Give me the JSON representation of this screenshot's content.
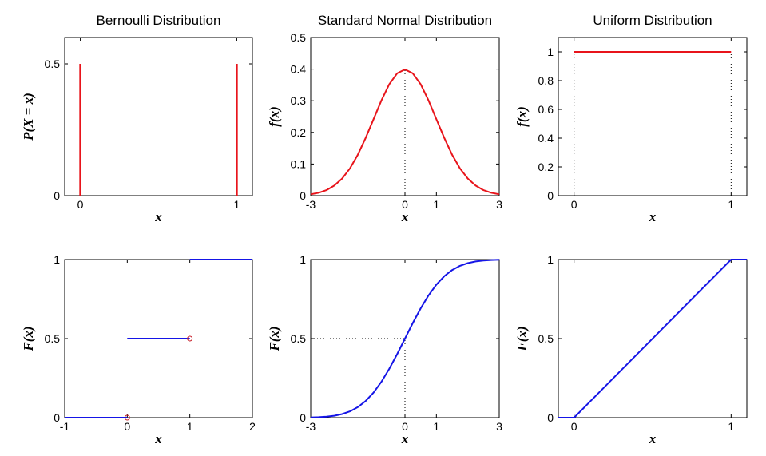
{
  "chart_data": [
    {
      "id": "bernoulli-pmf",
      "type": "stem",
      "title": "Bernoulli Distribution",
      "xlabel": "x",
      "ylabel": "P(X = x)",
      "xlim": [
        -0.1,
        1.1
      ],
      "ylim": [
        0,
        0.6
      ],
      "xticks": [
        0,
        1
      ],
      "yticks": [
        0,
        0.5
      ],
      "xtick_labels": [
        "0",
        "1"
      ],
      "ytick_labels": [
        "0",
        "0.5"
      ],
      "series": [
        {
          "kind": "stem",
          "color": "#e8141b",
          "points": [
            [
              0,
              0.5
            ],
            [
              1,
              0.5
            ]
          ]
        }
      ],
      "guides": []
    },
    {
      "id": "normal-pdf",
      "type": "line",
      "title": "Standard Normal Distribution",
      "xlabel": "x",
      "ylabel": "f(x)",
      "xlim": [
        -3,
        3
      ],
      "ylim": [
        0,
        0.5
      ],
      "xticks": [
        -3,
        0,
        1,
        3
      ],
      "yticks": [
        0,
        0.1,
        0.2,
        0.3,
        0.4,
        0.5
      ],
      "xtick_labels": [
        "-3",
        "0",
        "1",
        "3"
      ],
      "ytick_labels": [
        "0",
        "0.1",
        "0.2",
        "0.3",
        "0.4",
        "0.5"
      ],
      "series": [
        {
          "kind": "line",
          "color": "#e8141b",
          "points": [
            [
              -3,
              0.0044
            ],
            [
              -2.75,
              0.0091
            ],
            [
              -2.5,
              0.0175
            ],
            [
              -2.25,
              0.0317
            ],
            [
              -2,
              0.054
            ],
            [
              -1.75,
              0.0863
            ],
            [
              -1.5,
              0.1295
            ],
            [
              -1.25,
              0.1826
            ],
            [
              -1,
              0.242
            ],
            [
              -0.75,
              0.3011
            ],
            [
              -0.5,
              0.3521
            ],
            [
              -0.25,
              0.3867
            ],
            [
              0,
              0.3989
            ],
            [
              0.25,
              0.3867
            ],
            [
              0.5,
              0.3521
            ],
            [
              0.75,
              0.3011
            ],
            [
              1,
              0.242
            ],
            [
              1.25,
              0.1826
            ],
            [
              1.5,
              0.1295
            ],
            [
              1.75,
              0.0863
            ],
            [
              2,
              0.054
            ],
            [
              2.25,
              0.0317
            ],
            [
              2.5,
              0.0175
            ],
            [
              2.75,
              0.0091
            ],
            [
              3,
              0.0044
            ]
          ]
        }
      ],
      "guides": [
        [
          [
            0,
            0
          ],
          [
            0,
            0.3989
          ]
        ]
      ]
    },
    {
      "id": "uniform-pdf",
      "type": "line",
      "title": "Uniform Distribution",
      "xlabel": "x",
      "ylabel": "f(x)",
      "xlim": [
        -0.1,
        1.1
      ],
      "ylim": [
        0,
        1.1
      ],
      "xticks": [
        0,
        1
      ],
      "yticks": [
        0,
        0.2,
        0.4,
        0.6,
        0.8,
        1
      ],
      "xtick_labels": [
        "0",
        "1"
      ],
      "ytick_labels": [
        "0",
        "0.2",
        "0.4",
        "0.6",
        "0.8",
        "1"
      ],
      "series": [
        {
          "kind": "line",
          "color": "#e8141b",
          "points": [
            [
              0,
              1
            ],
            [
              1,
              1
            ]
          ]
        }
      ],
      "guides": [
        [
          [
            0,
            0
          ],
          [
            0,
            1
          ]
        ],
        [
          [
            1,
            0
          ],
          [
            1,
            1
          ]
        ]
      ]
    },
    {
      "id": "bernoulli-cdf",
      "type": "step",
      "title": "",
      "xlabel": "x",
      "ylabel": "F(x)",
      "xlim": [
        -1,
        2
      ],
      "ylim": [
        0,
        1
      ],
      "xticks": [
        -1,
        0,
        1,
        2
      ],
      "yticks": [
        0,
        0.5,
        1
      ],
      "xtick_labels": [
        "-1",
        "0",
        "1",
        "2"
      ],
      "ytick_labels": [
        "0",
        "0.5",
        "1"
      ],
      "series": [
        {
          "kind": "line",
          "color": "#1515e6",
          "points": [
            [
              -1,
              0
            ],
            [
              0,
              0
            ]
          ]
        },
        {
          "kind": "line",
          "color": "#1515e6",
          "points": [
            [
              0,
              0.5
            ],
            [
              1,
              0.5
            ]
          ]
        },
        {
          "kind": "line",
          "color": "#1515e6",
          "points": [
            [
              1,
              1
            ],
            [
              2,
              1
            ]
          ]
        },
        {
          "kind": "open-marker",
          "color": "#c8202a",
          "points": [
            [
              0,
              0
            ],
            [
              1,
              0.5
            ]
          ]
        }
      ],
      "guides": []
    },
    {
      "id": "normal-cdf",
      "type": "line",
      "title": "",
      "xlabel": "x",
      "ylabel": "F(x)",
      "xlim": [
        -3,
        3
      ],
      "ylim": [
        0,
        1
      ],
      "xticks": [
        -3,
        0,
        1,
        3
      ],
      "yticks": [
        0,
        0.5,
        1
      ],
      "xtick_labels": [
        "-3",
        "0",
        "1",
        "3"
      ],
      "ytick_labels": [
        "0",
        "0.5",
        "1"
      ],
      "series": [
        {
          "kind": "line",
          "color": "#1515e6",
          "points": [
            [
              -3,
              0.0013
            ],
            [
              -2.75,
              0.003
            ],
            [
              -2.5,
              0.0062
            ],
            [
              -2.25,
              0.0122
            ],
            [
              -2,
              0.0228
            ],
            [
              -1.75,
              0.0401
            ],
            [
              -1.5,
              0.0668
            ],
            [
              -1.25,
              0.1056
            ],
            [
              -1,
              0.1587
            ],
            [
              -0.75,
              0.2266
            ],
            [
              -0.5,
              0.3085
            ],
            [
              -0.25,
              0.4013
            ],
            [
              0,
              0.5
            ],
            [
              0.25,
              0.5987
            ],
            [
              0.5,
              0.6915
            ],
            [
              0.75,
              0.7734
            ],
            [
              1,
              0.8413
            ],
            [
              1.25,
              0.8944
            ],
            [
              1.5,
              0.9332
            ],
            [
              1.75,
              0.9599
            ],
            [
              2,
              0.9772
            ],
            [
              2.25,
              0.9878
            ],
            [
              2.5,
              0.9938
            ],
            [
              2.75,
              0.997
            ],
            [
              3,
              0.9987
            ]
          ]
        }
      ],
      "guides": [
        [
          [
            -3,
            0.5
          ],
          [
            0,
            0.5
          ]
        ],
        [
          [
            0,
            0
          ],
          [
            0,
            0.5
          ]
        ]
      ]
    },
    {
      "id": "uniform-cdf",
      "type": "line",
      "title": "",
      "xlabel": "x",
      "ylabel": "F(x)",
      "xlim": [
        -0.1,
        1.1
      ],
      "ylim": [
        0,
        1
      ],
      "xticks": [
        0,
        1
      ],
      "yticks": [
        0,
        0.5,
        1
      ],
      "xtick_labels": [
        "0",
        "1"
      ],
      "ytick_labels": [
        "0",
        "0.5",
        "1"
      ],
      "series": [
        {
          "kind": "line",
          "color": "#1515e6",
          "points": [
            [
              -0.1,
              0
            ],
            [
              0,
              0
            ],
            [
              1,
              1
            ],
            [
              1.1,
              1
            ]
          ]
        }
      ],
      "guides": []
    }
  ]
}
